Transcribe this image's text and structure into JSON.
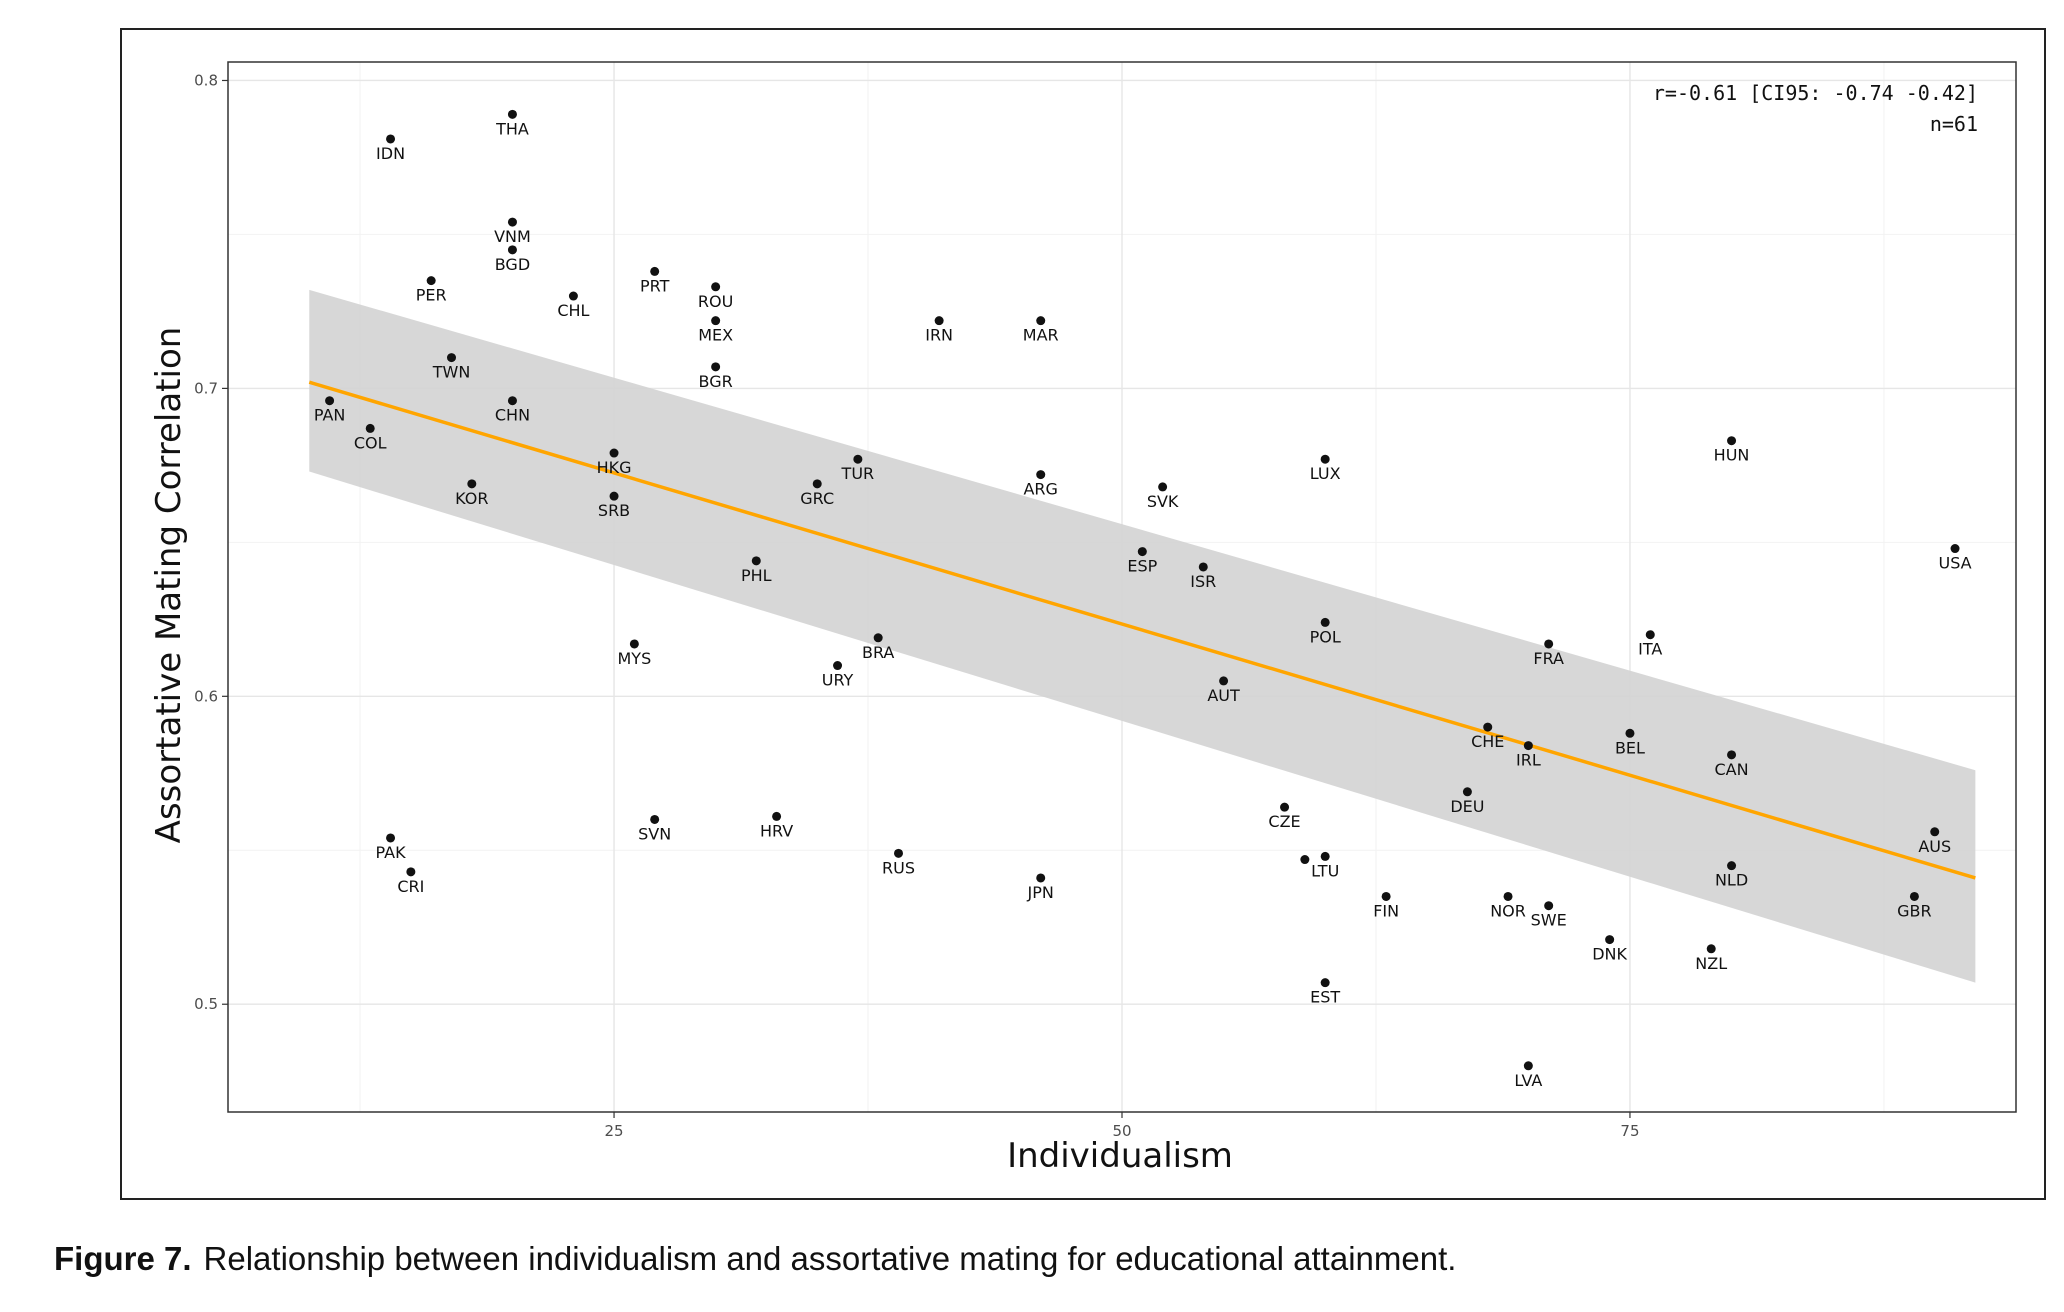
{
  "figure": {
    "caption_label": "Figure 7.",
    "caption_text": "Relationship between individualism and assortative mating for educational attainment."
  },
  "chart_data": {
    "type": "scatter",
    "xlabel": "Individualism",
    "ylabel": "Assortative Mating Correlation",
    "xlim": [
      6,
      94
    ],
    "ylim": [
      0.465,
      0.806
    ],
    "x_ticks": [
      25,
      50,
      75
    ],
    "y_ticks": [
      0.5,
      0.6,
      0.7,
      0.8
    ],
    "grid": true,
    "annotations": [
      "r=-0.61 [CI95: -0.74 -0.42]",
      "n=61"
    ],
    "regression": {
      "color": "#FFA500",
      "line": [
        [
          10,
          0.702
        ],
        [
          92,
          0.541
        ]
      ],
      "ci_band": {
        "x": [
          10,
          92
        ],
        "upper": [
          0.732,
          0.576
        ],
        "lower": [
          0.673,
          0.507
        ]
      },
      "band_color": "#d3d3d3"
    },
    "points": [
      {
        "label": "IDN",
        "x": 14,
        "y": 0.781
      },
      {
        "label": "THA",
        "x": 20,
        "y": 0.789
      },
      {
        "label": "VNM",
        "x": 20,
        "y": 0.754
      },
      {
        "label": "BGD",
        "x": 20,
        "y": 0.745
      },
      {
        "label": "PER",
        "x": 16,
        "y": 0.735
      },
      {
        "label": "CHL",
        "x": 23,
        "y": 0.73
      },
      {
        "label": "PRT",
        "x": 27,
        "y": 0.738
      },
      {
        "label": "ROU",
        "x": 30,
        "y": 0.733
      },
      {
        "label": "MEX",
        "x": 30,
        "y": 0.722
      },
      {
        "label": "IRN",
        "x": 41,
        "y": 0.722
      },
      {
        "label": "MAR",
        "x": 46,
        "y": 0.722
      },
      {
        "label": "TWN",
        "x": 17,
        "y": 0.71
      },
      {
        "label": "BGR",
        "x": 30,
        "y": 0.707
      },
      {
        "label": "PAN",
        "x": 11,
        "y": 0.696
      },
      {
        "label": "CHN",
        "x": 20,
        "y": 0.696
      },
      {
        "label": "COL",
        "x": 13,
        "y": 0.687
      },
      {
        "label": "HKG",
        "x": 25,
        "y": 0.679
      },
      {
        "label": "KOR",
        "x": 18,
        "y": 0.669
      },
      {
        "label": "SRB",
        "x": 25,
        "y": 0.665
      },
      {
        "label": "GRC",
        "x": 35,
        "y": 0.669
      },
      {
        "label": "TUR",
        "x": 37,
        "y": 0.677
      },
      {
        "label": "ARG",
        "x": 46,
        "y": 0.672
      },
      {
        "label": "SVK",
        "x": 52,
        "y": 0.668
      },
      {
        "label": "LUX",
        "x": 60,
        "y": 0.677
      },
      {
        "label": "HUN",
        "x": 80,
        "y": 0.683
      },
      {
        "label": "PHL",
        "x": 32,
        "y": 0.644
      },
      {
        "label": "ESP",
        "x": 51,
        "y": 0.647
      },
      {
        "label": "ISR",
        "x": 54,
        "y": 0.642
      },
      {
        "label": "USA",
        "x": 91,
        "y": 0.648
      },
      {
        "label": "POL",
        "x": 60,
        "y": 0.624
      },
      {
        "label": "FRA",
        "x": 71,
        "y": 0.617
      },
      {
        "label": "ITA",
        "x": 76,
        "y": 0.62
      },
      {
        "label": "MYS",
        "x": 26,
        "y": 0.617
      },
      {
        "label": "BRA",
        "x": 38,
        "y": 0.619
      },
      {
        "label": "URY",
        "x": 36,
        "y": 0.61
      },
      {
        "label": "AUT",
        "x": 55,
        "y": 0.605
      },
      {
        "label": "CHE",
        "x": 68,
        "y": 0.59
      },
      {
        "label": "IRL",
        "x": 70,
        "y": 0.584
      },
      {
        "label": "BEL",
        "x": 75,
        "y": 0.588
      },
      {
        "label": "CAN",
        "x": 80,
        "y": 0.581
      },
      {
        "label": "DEU",
        "x": 67,
        "y": 0.569
      },
      {
        "label": "CZE",
        "x": 58,
        "y": 0.564
      },
      {
        "label": "AUS",
        "x": 90,
        "y": 0.556
      },
      {
        "label": "PAK",
        "x": 14,
        "y": 0.554
      },
      {
        "label": "SVN",
        "x": 27,
        "y": 0.56
      },
      {
        "label": "HRV",
        "x": 33,
        "y": 0.561
      },
      {
        "label": "RUS",
        "x": 39,
        "y": 0.549
      },
      {
        "label": "LTU",
        "x": 60,
        "y": 0.548
      },
      {
        "label": "NLD",
        "x": 80,
        "y": 0.545
      },
      {
        "label": "CRI",
        "x": 15,
        "y": 0.543
      },
      {
        "label": "JPN",
        "x": 46,
        "y": 0.541
      },
      {
        "label": "GBR",
        "x": 89,
        "y": 0.535
      },
      {
        "label": "FIN",
        "x": 63,
        "y": 0.535
      },
      {
        "label": "NOR",
        "x": 69,
        "y": 0.535
      },
      {
        "label": "SWE",
        "x": 71,
        "y": 0.532
      },
      {
        "label": "DNK",
        "x": 74,
        "y": 0.521
      },
      {
        "label": "NZL",
        "x": 79,
        "y": 0.518
      },
      {
        "label": "EST",
        "x": 60,
        "y": 0.507
      },
      {
        "label": "LVA",
        "x": 70,
        "y": 0.48
      }
    ],
    "extra_points": [
      {
        "x": 59,
        "y": 0.547
      }
    ]
  }
}
